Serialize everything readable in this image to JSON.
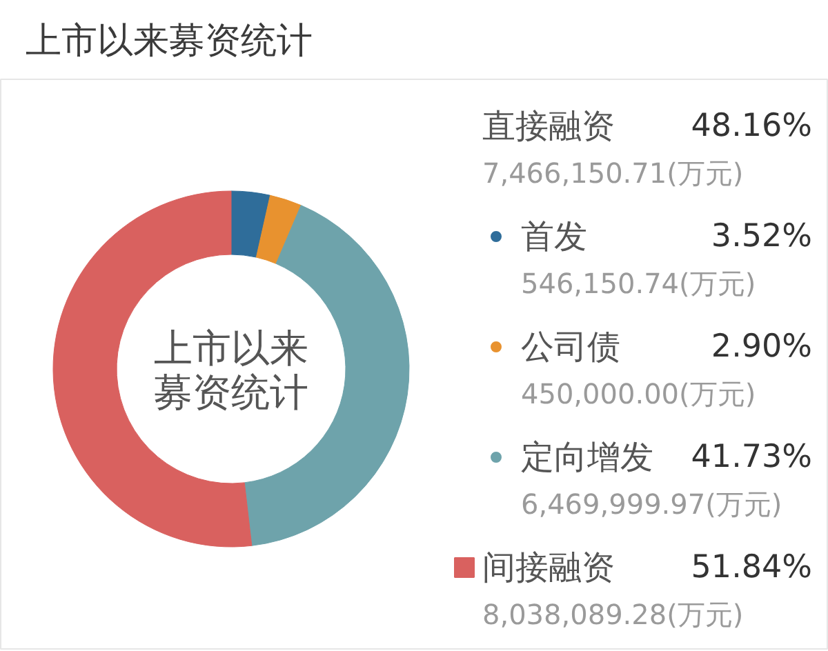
{
  "chart_data": {
    "type": "donut",
    "title": "上市以来募资统计",
    "categories": [
      "首发",
      "公司债",
      "定向增发",
      "间接融资"
    ],
    "values": [
      3.52,
      2.9,
      41.73,
      51.84
    ],
    "colors": [
      "#2f6d9a",
      "#e8922f",
      "#6ea3ab",
      "#d9615f"
    ],
    "value_labels": [
      "3.52%",
      "2.90%",
      "41.73%",
      "51.84%"
    ],
    "legend": "right",
    "annotations": [
      "上市以来",
      "募资统计",
      "直接融资",
      "48.16%",
      "7,466,150.71(万元)",
      "546,150.74(万元)",
      "450,000.00(万元)",
      "6,469,999.97(万元)",
      "8,038,089.28(万元)"
    ]
  }
}
